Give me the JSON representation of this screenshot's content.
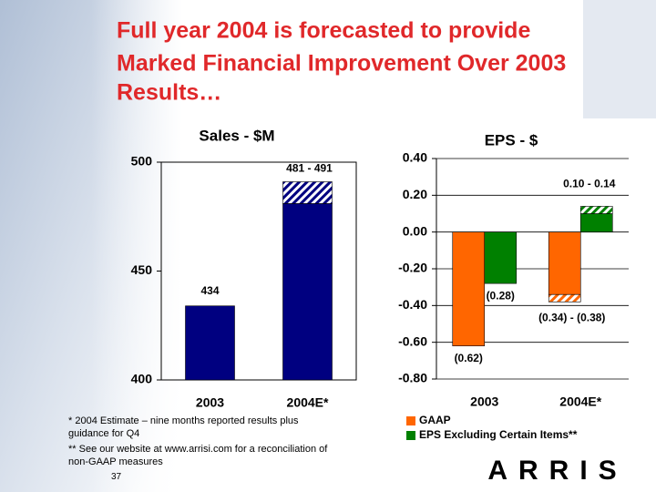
{
  "title": [
    "Full year 2004 is forecasted to provide",
    "Marked Financial Improvement Over 2003",
    "Results…"
  ],
  "chart_data": [
    {
      "type": "bar",
      "title": "Sales - $M",
      "categories": [
        "2003",
        "2004E*"
      ],
      "series": [
        {
          "color": "#000080",
          "values": [
            434,
            481
          ],
          "range_to": [
            null,
            491
          ],
          "value_labels": [
            "434",
            "481 - 491"
          ]
        }
      ],
      "ylim": [
        400,
        500
      ],
      "yticks": [
        400,
        450,
        500
      ],
      "grid": false
    },
    {
      "type": "bar",
      "title": "EPS - $",
      "categories": [
        "2003",
        "2004E*"
      ],
      "series": [
        {
          "name": "GAAP",
          "color": "#ff6600",
          "values": [
            -0.62,
            -0.34
          ],
          "range_to": [
            null,
            -0.38
          ],
          "value_labels": [
            "(0.62)",
            "(0.34) - (0.38)"
          ]
        },
        {
          "name": "EPS Excluding Certain Items**",
          "color": "#008000",
          "values": [
            -0.28,
            0.1
          ],
          "range_to": [
            null,
            0.14
          ],
          "value_labels": [
            "(0.28)",
            "0.10 - 0.14"
          ]
        }
      ],
      "ylim": [
        -0.8,
        0.4
      ],
      "yticks": [
        {
          "value": -0.8,
          "label": "-0.80"
        },
        {
          "value": -0.6,
          "label": "-0.60"
        },
        {
          "value": -0.4,
          "label": "-0.40"
        },
        {
          "value": -0.2,
          "label": "-0.20"
        },
        {
          "value": 0,
          "label": "0.00"
        },
        {
          "value": 0.2,
          "label": "0.20"
        },
        {
          "value": 0.4,
          "label": "0.40"
        }
      ],
      "grid": true,
      "legend": "bottom"
    }
  ],
  "footnotes": [
    "* 2004 Estimate – nine months reported results plus",
    "guidance for Q4",
    "** See our website at www.arrisi.com for a reconciliation of",
    "non-GAAP measures"
  ],
  "page_number": "37",
  "logo": "ARRIS"
}
